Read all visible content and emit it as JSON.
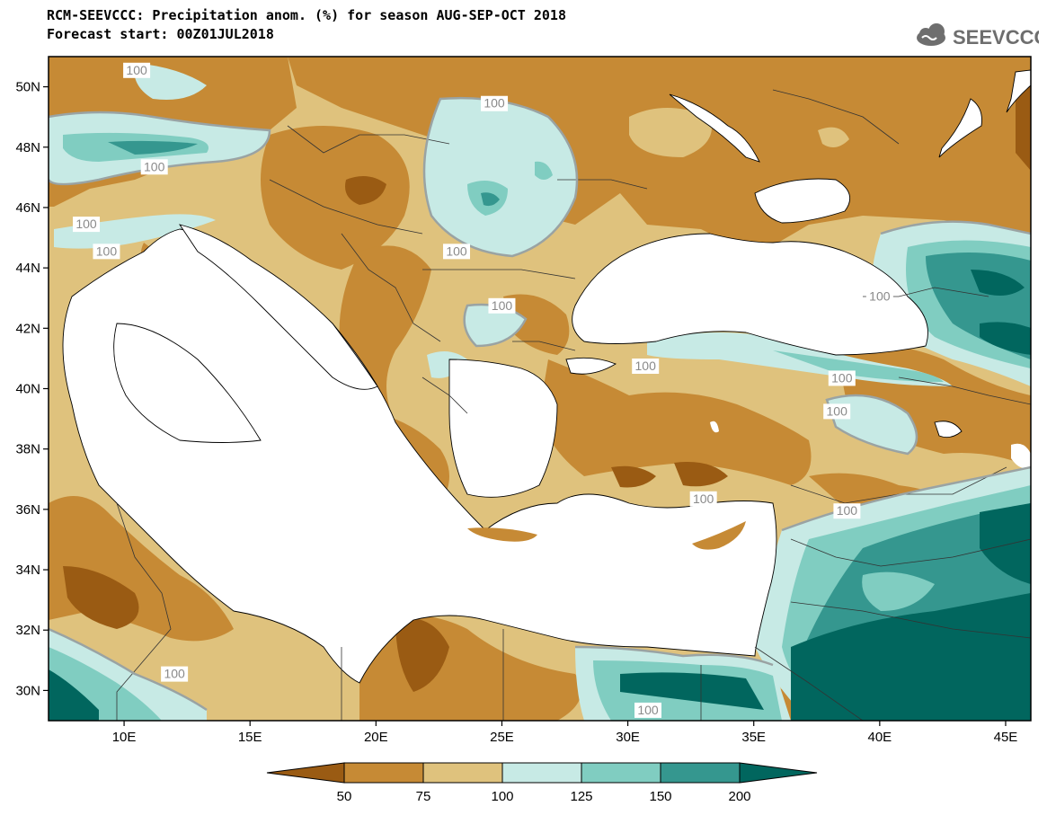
{
  "title": {
    "line1": "RCM-SEEVCCC: Precipitation anom. (%) for season AUG-SEP-OCT 2018",
    "line2": "Forecast start: 00Z01JUL2018"
  },
  "logo": {
    "text": "SEEVCCC",
    "icon": "cloud-icon"
  },
  "map": {
    "lon_range": [
      7,
      46
    ],
    "lat_range": [
      29,
      51
    ],
    "lon_ticks": [
      {
        "value": 10,
        "label": "10E"
      },
      {
        "value": 15,
        "label": "15E"
      },
      {
        "value": 20,
        "label": "20E"
      },
      {
        "value": 25,
        "label": "25E"
      },
      {
        "value": 30,
        "label": "30E"
      },
      {
        "value": 35,
        "label": "35E"
      },
      {
        "value": 40,
        "label": "40E"
      },
      {
        "value": 45,
        "label": "45E"
      }
    ],
    "lat_ticks": [
      {
        "value": 30,
        "label": "30N"
      },
      {
        "value": 32,
        "label": "32N"
      },
      {
        "value": 34,
        "label": "34N"
      },
      {
        "value": 36,
        "label": "36N"
      },
      {
        "value": 38,
        "label": "38N"
      },
      {
        "value": 40,
        "label": "40N"
      },
      {
        "value": 42,
        "label": "42N"
      },
      {
        "value": 44,
        "label": "44N"
      },
      {
        "value": 46,
        "label": "46N"
      },
      {
        "value": 48,
        "label": "48N"
      },
      {
        "value": 50,
        "label": "50N"
      }
    ],
    "contour_labels": [
      {
        "text": "100",
        "lon": 10.5,
        "lat": 50.5
      },
      {
        "text": "100",
        "lon": 11.2,
        "lat": 47.3
      },
      {
        "text": "100",
        "lon": 8.5,
        "lat": 45.4
      },
      {
        "text": "100",
        "lon": 9.3,
        "lat": 44.5
      },
      {
        "text": "100",
        "lon": 24.7,
        "lat": 49.4
      },
      {
        "text": "100",
        "lon": 23.2,
        "lat": 44.5
      },
      {
        "text": "100",
        "lon": 25.0,
        "lat": 42.7
      },
      {
        "text": "100",
        "lon": 30.7,
        "lat": 40.7
      },
      {
        "text": "100",
        "lon": 40.0,
        "lat": 43.0
      },
      {
        "text": "100",
        "lon": 38.5,
        "lat": 40.3
      },
      {
        "text": "100",
        "lon": 38.3,
        "lat": 39.2
      },
      {
        "text": "100",
        "lon": 33.0,
        "lat": 36.3
      },
      {
        "text": "100",
        "lon": 38.7,
        "lat": 35.9
      },
      {
        "text": "100",
        "lon": 12.0,
        "lat": 30.5
      },
      {
        "text": "100",
        "lon": 30.8,
        "lat": 29.3
      }
    ],
    "colors": {
      "sea": "#ffffff",
      "c_lt50": "#9a5b13",
      "c_50_75": "#c68a35",
      "c_75_100": "#dfc27d",
      "c_100_125": "#c7eae5",
      "c_125_150": "#80cdc1",
      "c_150_200": "#35978f",
      "c_gt200": "#01665e"
    }
  },
  "colorbar": {
    "labels": [
      "50",
      "75",
      "100",
      "125",
      "150",
      "200"
    ],
    "colors": [
      "#9a5b13",
      "#c68a35",
      "#dfc27d",
      "#c7eae5",
      "#80cdc1",
      "#35978f",
      "#01665e"
    ]
  }
}
